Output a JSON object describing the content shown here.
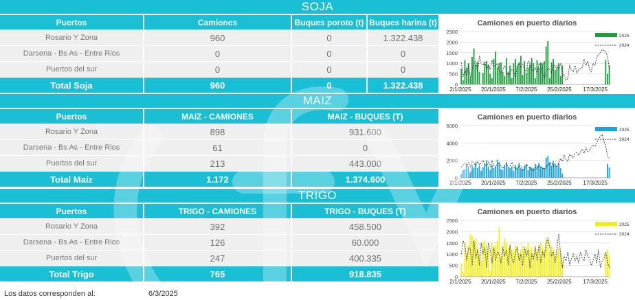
{
  "soja": {
    "band_title": "SOJA",
    "headers": [
      "Puertos",
      "Camiones",
      "Buques poroto (t)",
      "Buques harina (t)"
    ],
    "rows": [
      {
        "label": "Rosario Y Zona",
        "values": [
          "960",
          "0",
          "1.322.438"
        ]
      },
      {
        "label": "Darsena - Bs As - Entre Rios",
        "values": [
          "0",
          "0",
          "0"
        ]
      },
      {
        "label": "Puertos del sur",
        "values": [
          "0",
          "0",
          "0"
        ]
      }
    ],
    "total": {
      "label": "Total Soja",
      "values": [
        "960",
        "0",
        "1.322.438"
      ]
    }
  },
  "maiz": {
    "band_title": "MAIZ",
    "headers": [
      "Puertos",
      "MAIZ - CAMIONES",
      "MAIZ - BUQUES (T)"
    ],
    "rows": [
      {
        "label": "Rosario Y Zona",
        "values": [
          "898",
          "931.600"
        ]
      },
      {
        "label": "Darsena - Bs As - Entre Rios",
        "values": [
          "61",
          "0"
        ]
      },
      {
        "label": "Puertos del sur",
        "values": [
          "213",
          "443.000"
        ]
      }
    ],
    "total": {
      "label": "Total Maíz",
      "values": [
        "1.172",
        "1.374.600"
      ]
    }
  },
  "trigo": {
    "band_title": "TRIGO",
    "headers": [
      "Puertos",
      "TRIGO - CAMIONES",
      "TRIGO - BUQUES (T)"
    ],
    "rows": [
      {
        "label": "Rosario Y Zona",
        "values": [
          "392",
          "458.500"
        ]
      },
      {
        "label": "Darsena - Bs As - Entre Rios",
        "values": [
          "126",
          "60.000"
        ]
      },
      {
        "label": "Puertos del sur",
        "values": [
          "247",
          "400.335"
        ]
      }
    ],
    "total": {
      "label": "Total Trigo",
      "values": [
        "765",
        "918.835"
      ]
    }
  },
  "footer": {
    "label": "Los datos corresponden al:",
    "date": "6/3/2025"
  },
  "colors": {
    "accent": "#1bbfd5",
    "row_bg": "#efefef",
    "soja_bar": "#1f9e3f",
    "maiz_bar": "#1aa3e6",
    "trigo_bar": "#f2ee1c",
    "line_2024": "#333333"
  },
  "chart_data": [
    {
      "type": "bar",
      "title": "Camiones en puerto diarios",
      "legend": [
        "2025",
        "2024"
      ],
      "legend_placement": "top-right",
      "bar_color": "#1f9e3f",
      "x_ticks": [
        "2/1/2025",
        "20/1/2025",
        "7/2/2025",
        "25/2/2025",
        "17/3/2025"
      ],
      "ylim": [
        0,
        2500
      ],
      "y_ticks": [
        0,
        500,
        1000,
        1500,
        2000,
        2500
      ],
      "series": [
        {
          "name": "2025",
          "kind": "bar",
          "values": [
            750,
            200,
            1150,
            800,
            1000,
            300,
            1300,
            1700,
            950,
            1050,
            600,
            0,
            550,
            1000,
            1100,
            900,
            500,
            300,
            1200,
            1550,
            800,
            1000,
            1050,
            600,
            400,
            1250,
            600,
            900,
            300,
            1000,
            1200,
            900,
            1050,
            1350,
            450,
            1100,
            550,
            800,
            950,
            1250,
            1000,
            300,
            1150,
            800,
            1050,
            1000,
            1100,
            1800,
            2050,
            300,
            1050,
            1200,
            700,
            800,
            1000,
            400,
            900,
            0,
            0,
            0,
            0,
            0,
            0,
            0,
            0,
            0,
            0,
            0,
            0,
            0,
            0,
            0,
            0,
            0,
            0,
            0,
            0,
            0,
            0,
            0,
            1150,
            500,
            900
          ]
        },
        {
          "name": "2024",
          "kind": "line",
          "values": [
            1050,
            350,
            700,
            400,
            950,
            300,
            700,
            1000,
            1100,
            600,
            1350,
            1000,
            900,
            1100,
            700,
            950,
            700,
            1150,
            850,
            900,
            1000,
            600,
            550,
            700,
            900,
            650,
            400,
            550,
            700,
            650,
            300,
            900,
            1000,
            800,
            950,
            800,
            600,
            1100,
            1000,
            700,
            650,
            800,
            500,
            1000,
            900,
            500,
            300,
            600,
            750,
            700,
            550,
            950,
            800,
            900,
            700,
            1000,
            400,
            450,
            200,
            300,
            900,
            700,
            600,
            900,
            550,
            700,
            750,
            800,
            1200,
            900,
            1100,
            700,
            600,
            1000,
            900,
            1300,
            1400,
            1500,
            1650,
            1600,
            1550,
            1300,
            700
          ]
        }
      ]
    },
    {
      "type": "bar",
      "title": "Camiones en puerto diarios",
      "legend": [
        "2025",
        "2024"
      ],
      "legend_placement": "top-right",
      "bar_color": "#1aa3e6",
      "x_ticks": [
        "2/1/2025",
        "20/1/2025",
        "7/2/2025",
        "25/2/2025",
        "17/3/2025"
      ],
      "ylim": [
        0,
        6000
      ],
      "y_ticks": [
        0,
        2000,
        4000,
        6000
      ],
      "series": [
        {
          "name": "2025",
          "kind": "bar",
          "values": [
            400,
            900,
            1000,
            1600,
            1300,
            700,
            1500,
            1200,
            1800,
            1100,
            1400,
            800,
            1200,
            1600,
            2000,
            1300,
            900,
            1500,
            1100,
            1300,
            2100,
            1700,
            1000,
            900,
            1400,
            1800,
            1200,
            1100,
            1300,
            800,
            1500,
            1200,
            1700,
            1100,
            1000,
            1400,
            1600,
            900,
            1300,
            1200,
            1100,
            1600,
            1400,
            1700,
            1300,
            1200,
            1100,
            2300,
            2500,
            1800,
            1400,
            1900,
            1600,
            1200,
            1700,
            1100,
            500,
            0,
            0,
            0,
            0,
            0,
            0,
            0,
            0,
            0,
            0,
            0,
            0,
            0,
            0,
            0,
            0,
            0,
            0,
            0,
            0,
            0,
            0,
            0,
            0,
            1600,
            1200
          ]
        },
        {
          "name": "2024",
          "kind": "line",
          "values": [
            1200,
            1500,
            1700,
            1400,
            1800,
            1300,
            1900,
            1600,
            1400,
            1900,
            1500,
            1700,
            2000,
            1500,
            1400,
            1800,
            1300,
            2000,
            1400,
            1200,
            1600,
            1800,
            1300,
            1100,
            1500,
            1600,
            1200,
            1300,
            1800,
            1200,
            1100,
            900,
            1400,
            1300,
            800,
            1000,
            1500,
            1300,
            1100,
            900,
            800,
            1200,
            1000,
            1400,
            1300,
            1100,
            1000,
            1200,
            1500,
            1600,
            1700,
            1300,
            1500,
            1200,
            1800,
            2200,
            1900,
            2600,
            2100,
            1900,
            2700,
            2500,
            2300,
            2800,
            2900,
            2600,
            3000,
            3300,
            2800,
            3500,
            3000,
            3200,
            3500,
            3800,
            3600,
            4000,
            4400,
            4800,
            5000,
            4200,
            3600,
            2500,
            2200
          ]
        }
      ]
    },
    {
      "type": "bar",
      "title": "Camiones en puerto diarios",
      "legend": [
        "2025",
        "2024"
      ],
      "legend_placement": "top-right",
      "bar_color": "#f2ee1c",
      "x_ticks": [
        "2/1/2025",
        "20/1/2025",
        "7/2/2025",
        "25/2/2025",
        "17/3/2025"
      ],
      "ylim": [
        0,
        2500
      ],
      "y_ticks": [
        0,
        500,
        1000,
        1500,
        2000,
        2500
      ],
      "series": [
        {
          "name": "2025",
          "kind": "bar",
          "values": [
            600,
            200,
            1500,
            900,
            1400,
            1900,
            1800,
            1600,
            1700,
            1300,
            1000,
            700,
            1500,
            1600,
            1400,
            1200,
            300,
            1500,
            1300,
            1400,
            1600,
            2200,
            900,
            1400,
            1700,
            1500,
            1300,
            1400,
            1200,
            1100,
            1400,
            1300,
            1000,
            1200,
            1400,
            1100,
            1300,
            1500,
            1200,
            1300,
            1000,
            1400,
            1200,
            900,
            1500,
            1300,
            1200,
            1700,
            1600,
            1100,
            1400,
            1200,
            900,
            1100,
            1300,
            1000,
            700,
            0,
            0,
            0,
            0,
            0,
            0,
            0,
            0,
            0,
            0,
            0,
            0,
            0,
            0,
            0,
            0,
            0,
            0,
            0,
            0,
            0,
            0,
            0,
            1000,
            1200,
            900
          ]
        },
        {
          "name": "2024",
          "kind": "line",
          "values": [
            1000,
            1600,
            1400,
            700,
            1300,
            1200,
            500,
            1600,
            800,
            1200,
            500,
            1500,
            1000,
            1300,
            400,
            1500,
            1200,
            600,
            1300,
            700,
            1100,
            1000,
            600,
            1300,
            900,
            1200,
            500,
            1400,
            800,
            600,
            1100,
            1300,
            700,
            1000,
            500,
            1300,
            900,
            1200,
            400,
            1000,
            800,
            1300,
            700,
            1400,
            600,
            1100,
            900,
            1500,
            1700,
            1300,
            900,
            1100,
            600,
            1300,
            1900,
            1000,
            400,
            900,
            700,
            1100,
            500,
            800,
            1000,
            700,
            900,
            600,
            1100,
            800,
            700,
            1200,
            900,
            800,
            500,
            700,
            1000,
            600,
            1200,
            400,
            700,
            800,
            1100,
            600,
            400
          ]
        }
      ]
    }
  ]
}
